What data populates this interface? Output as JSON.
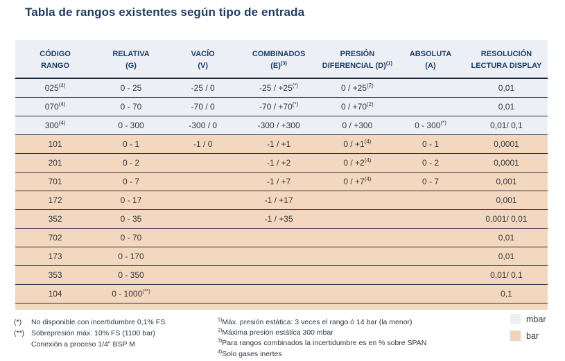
{
  "title": "Tabla de rangos existentes según tipo de entrada",
  "table": {
    "columns": [
      {
        "line1": "CÓDIGO",
        "line2": "RANGO"
      },
      {
        "line1": "RELATIVA",
        "line2": "(G)"
      },
      {
        "line1": "VACÍO",
        "line2": "(V)"
      },
      {
        "line1": "COMBINADOS",
        "line2": "(E)^(3)"
      },
      {
        "line1": "PRESIÓN",
        "line2": "DIFERENCIAL (D)^(1)"
      },
      {
        "line1": "ABSOLUTA",
        "line2": "(A)"
      },
      {
        "line1": "RESOLUCIÓN",
        "line2": "LECTURA DISPLAY"
      }
    ],
    "rows": [
      {
        "unit": "mbar",
        "cells": [
          "025^(4)",
          "0 - 25",
          "-25 / 0",
          "-25 / +25^(*)",
          "0 / +25^(2)",
          "",
          "0,01"
        ]
      },
      {
        "unit": "mbar",
        "cells": [
          "070^(4)",
          "0 - 70",
          "-70 / 0",
          "-70 / +70^(*)",
          "0 / +70^(2)",
          "",
          "0,01"
        ]
      },
      {
        "unit": "mbar",
        "cells": [
          "300^(4)",
          "0 - 300",
          "-300 / 0",
          "-300 / +300",
          "0 / +300",
          "0 - 300^(*)",
          "0,01/ 0,1"
        ]
      },
      {
        "unit": "bar",
        "cells": [
          "101",
          "0 - 1",
          "-1 / 0",
          "-1 / +1",
          "0 / +1^(4)",
          "0 - 1",
          "0,0001"
        ]
      },
      {
        "unit": "bar",
        "cells": [
          "201",
          "0 - 2",
          "",
          "-1 / +2",
          "0 / +2^(4)",
          "0 - 2",
          "0,0001"
        ]
      },
      {
        "unit": "bar",
        "cells": [
          "701",
          "0 - 7",
          "",
          "-1 / +7",
          "0 / +7^(4)",
          "0 - 7",
          "0,001"
        ]
      },
      {
        "unit": "bar",
        "cells": [
          "172",
          "0 - 17",
          "",
          "-1 / +17",
          "",
          "",
          "0,001"
        ]
      },
      {
        "unit": "bar",
        "cells": [
          "352",
          "0 - 35",
          "",
          "-1 / +35",
          "",
          "",
          "0,001/ 0,01"
        ]
      },
      {
        "unit": "bar",
        "cells": [
          "702",
          "0 - 70",
          "",
          "",
          "",
          "",
          "0,01"
        ]
      },
      {
        "unit": "bar",
        "cells": [
          "173",
          "0 - 170",
          "",
          "",
          "",
          "",
          "0,01"
        ]
      },
      {
        "unit": "bar",
        "cells": [
          "353",
          "0 - 350",
          "",
          "",
          "",
          "",
          "0,01/ 0,1"
        ]
      },
      {
        "unit": "bar",
        "cells": [
          "104",
          "0 - 1000^(**)",
          "",
          "",
          "",
          "",
          "0,1"
        ]
      }
    ]
  },
  "footnotes": {
    "starred": [
      {
        "marker": "(*)",
        "text": "No disponible con incertidumbre 0,1% FS"
      },
      {
        "marker": "(**)",
        "text": "Sobrepresión máx. 10% FS (1100 bar)"
      },
      {
        "marker": "",
        "text": "Conexión a proceso 1/4\" BSP M"
      }
    ],
    "numbered": [
      {
        "marker": "1)",
        "text": "Máx. presión estática: 3 veces el rango ó 14 bar (la menor)"
      },
      {
        "marker": "2)",
        "text": "Máxima presión estática 300 mbar"
      },
      {
        "marker": "3)",
        "text": "Para rangos combinados la incertidumbre es en % sobre SPAN"
      },
      {
        "marker": "4)",
        "text": "Solo gases inertes"
      }
    ]
  },
  "legend": [
    {
      "label": "mbar",
      "color": "#ecf0f6"
    },
    {
      "label": "bar",
      "color": "#f1d3b7"
    }
  ],
  "colors": {
    "title_navy": "#1d3c64",
    "mbar_bg": "#ecf0f6",
    "bar_bg": "#f3d8bf",
    "divider_line": "#272e3a",
    "body_text": "#33363b"
  }
}
